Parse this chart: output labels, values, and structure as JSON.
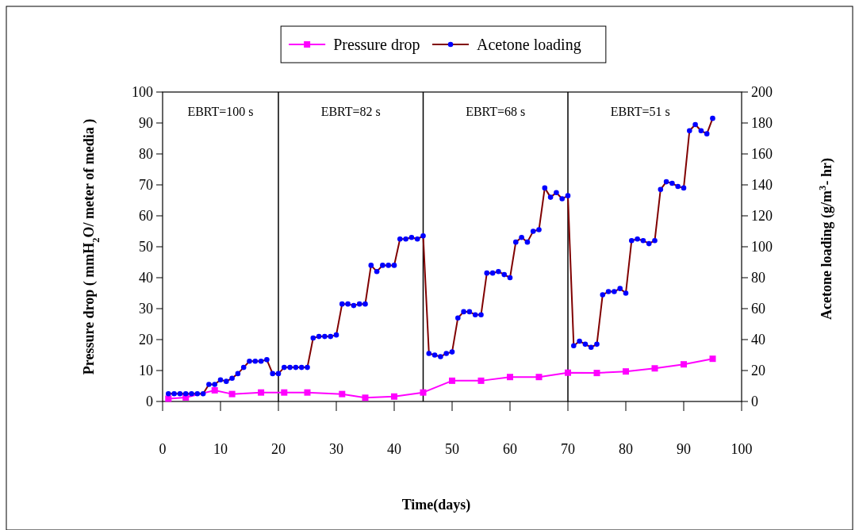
{
  "chart_data": {
    "type": "line",
    "xlabel": "Time(days)",
    "ylabel": "Pressure drop ( mmH$_{2}$O/ meter of  media )",
    "y2label": "Acetone  loading (g/m$^{3}$- hr)",
    "xlim": [
      0,
      100
    ],
    "xticks": [
      0,
      10,
      20,
      30,
      40,
      50,
      60,
      70,
      80,
      90,
      100
    ],
    "ylim": [
      0,
      100
    ],
    "yticks": [
      0,
      10,
      20,
      30,
      40,
      50,
      60,
      70,
      80,
      90,
      100
    ],
    "y2lim": [
      0,
      200
    ],
    "y2ticks": [
      0,
      20,
      40,
      60,
      80,
      100,
      120,
      140,
      160,
      180,
      200
    ],
    "legend": "top",
    "grid": false,
    "series": [
      {
        "name": "Pressure drop",
        "color": "#ff00ff",
        "marker": "square",
        "x": [
          1,
          4,
          9,
          12,
          17,
          21,
          25,
          31,
          35,
          40,
          45,
          50,
          55,
          60,
          65,
          70,
          75,
          80,
          85,
          90,
          95
        ],
        "values": [
          0.9,
          1.3,
          3.6,
          2.4,
          2.9,
          2.9,
          2.9,
          2.4,
          1.2,
          1.6,
          2.9,
          6.7,
          6.7,
          7.9,
          7.9,
          9.3,
          9.2,
          9.7,
          10.7,
          12,
          13.8
        ]
      },
      {
        "name": "Acetone  loading",
        "color": "#800000",
        "colors": [
          "#0000ff",
          "#0000ff",
          "#0000ff",
          "#0000ff",
          "#0000ff",
          "#0000ff",
          "#0000ff",
          "#0000ff",
          "#0000ff",
          "#0000ff",
          "#0000ff",
          "#0000ff",
          "#0000ff",
          "#0000ff",
          "#0000ff",
          "#0000ff",
          "#0000ff",
          "#0000ff",
          "#0000ff",
          "#0000ff",
          "#0000ff",
          "#0000ff",
          "#0000ff",
          "#0000ff",
          "#0000ff",
          "#0000ff",
          "#0000ff",
          "#0000ff",
          "#0000ff",
          "#0000ff",
          "#0000ff",
          "#0000ff",
          "#0000ff",
          "#0000ff",
          "#0000ff",
          "#0000ff",
          "#0000ff",
          "#0000ff",
          "#0000ff",
          "#0000ff",
          "#0000ff",
          "#0000ff",
          "#0000ff",
          "#0000ff",
          "#0000ff",
          "#0000ff",
          "#0000ff",
          "#0000ff",
          "#0000ff",
          "#0000ff",
          "#0000ff",
          "#0000ff",
          "#0000ff",
          "#0000ff",
          "#0000ff",
          "#0000ff",
          "#0000ff",
          "#0000ff",
          "#0000ff",
          "#0000ff",
          "#0000ff",
          "#0000ff",
          "#0000ff",
          "#0000ff",
          "#0000ff",
          "#0000ff",
          "#0000ff",
          "#0000ff",
          "#0000ff",
          "#0000ff",
          "#0000ff",
          "#0000ff",
          "#0000ff",
          "#0000ff",
          "#0000ff",
          "#0000ff",
          "#0000ff",
          "#0000ff",
          "#0000ff",
          "#0000ff",
          "#0000ff",
          "#0000ff",
          "#0000ff",
          "#0000ff",
          "#0000ff",
          "#0000ff",
          "#0000ff",
          "#0000ff",
          "#0000ff",
          "#0000ff",
          "#0000ff",
          "#0000ff",
          "#0000ff",
          "#0000ff",
          "#0000ff"
        ],
        "marker": "circle",
        "axis": "y2",
        "x": [
          1,
          2,
          3,
          4,
          5,
          6,
          7,
          8,
          9,
          10,
          11,
          12,
          13,
          14,
          15,
          16,
          17,
          18,
          19,
          20,
          21,
          22,
          23,
          24,
          25,
          26,
          27,
          28,
          29,
          30,
          31,
          32,
          33,
          34,
          35,
          36,
          37,
          38,
          39,
          40,
          41,
          42,
          43,
          44,
          45,
          46,
          47,
          48,
          49,
          50,
          51,
          52,
          53,
          54,
          55,
          56,
          57,
          58,
          59,
          60,
          61,
          62,
          63,
          64,
          65,
          66,
          67,
          68,
          69,
          70,
          71,
          72,
          73,
          74,
          75,
          76,
          77,
          78,
          79,
          80,
          81,
          82,
          83,
          84,
          85,
          86,
          87,
          88,
          89,
          90,
          91,
          92,
          93,
          94,
          95
        ],
        "values": [
          5,
          5,
          5,
          5,
          5,
          5,
          5,
          11,
          11,
          14,
          13,
          15,
          18,
          22,
          26,
          26,
          26,
          27,
          18,
          18,
          22,
          22,
          22,
          22,
          22,
          41,
          42,
          42,
          42,
          43,
          63,
          63,
          62,
          63,
          63,
          88,
          84,
          88,
          88,
          88,
          105,
          105,
          106,
          105,
          107,
          31,
          30,
          29,
          31,
          32,
          54,
          58,
          58,
          56,
          56,
          83,
          83,
          84,
          82,
          80,
          103,
          106,
          103,
          110,
          111,
          138,
          132,
          135,
          131,
          133,
          36,
          39,
          37,
          35,
          37,
          69,
          71,
          71,
          73,
          70,
          104,
          105,
          104,
          102,
          104,
          137,
          142,
          141,
          139,
          138,
          175,
          179,
          175,
          173,
          183
        ]
      }
    ],
    "ref_lines": [
      {
        "axis": "x",
        "value": 20,
        "color": "#000000"
      },
      {
        "axis": "x",
        "value": 45,
        "color": "#000000"
      },
      {
        "axis": "x",
        "value": 70,
        "color": "#000000"
      }
    ],
    "annotations": [
      "EBRT=100 s",
      "EBRT=82 s",
      "EBRT=68 s",
      "EBRT=51 s"
    ]
  }
}
